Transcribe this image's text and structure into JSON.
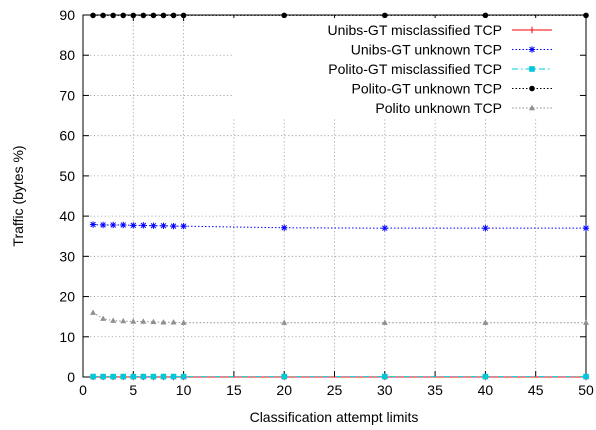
{
  "chart_data": {
    "type": "line",
    "xlabel": "Classification attempt limits",
    "ylabel": "Traffic (bytes %)",
    "xlim": [
      0,
      50
    ],
    "ylim": [
      0,
      90
    ],
    "xticks": [
      0,
      5,
      10,
      15,
      20,
      25,
      30,
      35,
      40,
      45,
      50
    ],
    "yticks": [
      0,
      10,
      20,
      30,
      40,
      50,
      60,
      70,
      80,
      90
    ],
    "grid": true,
    "legend_position": "top-right",
    "x": [
      1,
      2,
      3,
      4,
      5,
      6,
      7,
      8,
      9,
      10,
      20,
      30,
      40,
      50
    ],
    "series": [
      {
        "name": "Unibs-GT misclassified TCP",
        "color": "#ff0000",
        "line": "solid",
        "marker": "plus",
        "values": [
          0,
          0,
          0,
          0,
          0,
          0,
          0,
          0,
          0,
          0,
          0,
          0,
          0,
          0
        ]
      },
      {
        "name": "Unibs-GT unknown TCP",
        "color": "#0000ff",
        "line": "dotted",
        "marker": "star",
        "values": [
          37.9,
          37.8,
          37.8,
          37.8,
          37.7,
          37.7,
          37.6,
          37.6,
          37.5,
          37.5,
          37.1,
          37.0,
          37.0,
          37.0
        ]
      },
      {
        "name": "Polito-GT misclassified TCP",
        "color": "#00c8d8",
        "line": "dash-dot",
        "marker": "square",
        "values": [
          0.1,
          0.1,
          0.1,
          0.1,
          0.1,
          0.1,
          0.1,
          0.1,
          0.1,
          0.1,
          0.1,
          0.1,
          0.1,
          0.1
        ]
      },
      {
        "name": "Polito-GT unknown TCP",
        "color": "#000000",
        "line": "dotted",
        "marker": "circle",
        "values": [
          89.9,
          89.9,
          89.9,
          89.9,
          89.9,
          89.9,
          89.9,
          89.9,
          89.9,
          89.9,
          89.9,
          89.9,
          89.9,
          89.9
        ]
      },
      {
        "name": "Polito unknown TCP",
        "color": "#909090",
        "line": "dotted",
        "marker": "triangle",
        "values": [
          16.0,
          14.5,
          14.0,
          13.9,
          13.8,
          13.8,
          13.7,
          13.6,
          13.6,
          13.5,
          13.5,
          13.5,
          13.5,
          13.5
        ]
      }
    ]
  }
}
